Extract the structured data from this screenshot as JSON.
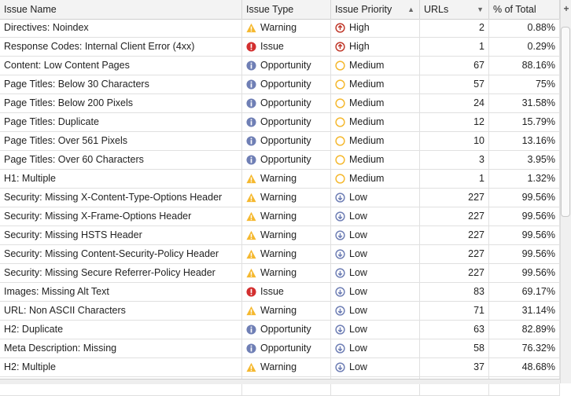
{
  "columns": [
    "Issue Name",
    "Issue Type",
    "Issue Priority",
    "URLs",
    "% of Total"
  ],
  "colors": {
    "warning": "#f5b82e",
    "issue": "#d32f2f",
    "opportunity": "#6f7fb5",
    "high": "#c0392b",
    "medium": "#f5b82e",
    "low": "#6f7fb5"
  },
  "rows": [
    [
      "Directives: Noindex",
      "Warning",
      "High",
      "2",
      "0.88%"
    ],
    [
      "Response Codes: Internal Client Error (4xx)",
      "Issue",
      "High",
      "1",
      "0.29%"
    ],
    [
      "Content: Low Content Pages",
      "Opportunity",
      "Medium",
      "67",
      "88.16%"
    ],
    [
      "Page Titles: Below 30 Characters",
      "Opportunity",
      "Medium",
      "57",
      "75%"
    ],
    [
      "Page Titles: Below 200 Pixels",
      "Opportunity",
      "Medium",
      "24",
      "31.58%"
    ],
    [
      "Page Titles: Duplicate",
      "Opportunity",
      "Medium",
      "12",
      "15.79%"
    ],
    [
      "Page Titles: Over 561 Pixels",
      "Opportunity",
      "Medium",
      "10",
      "13.16%"
    ],
    [
      "Page Titles: Over 60 Characters",
      "Opportunity",
      "Medium",
      "3",
      "3.95%"
    ],
    [
      "H1: Multiple",
      "Warning",
      "Medium",
      "1",
      "1.32%"
    ],
    [
      "Security: Missing X-Content-Type-Options Header",
      "Warning",
      "Low",
      "227",
      "99.56%"
    ],
    [
      "Security: Missing X-Frame-Options Header",
      "Warning",
      "Low",
      "227",
      "99.56%"
    ],
    [
      "Security: Missing HSTS Header",
      "Warning",
      "Low",
      "227",
      "99.56%"
    ],
    [
      "Security: Missing Content-Security-Policy Header",
      "Warning",
      "Low",
      "227",
      "99.56%"
    ],
    [
      "Security: Missing Secure Referrer-Policy Header",
      "Warning",
      "Low",
      "227",
      "99.56%"
    ],
    [
      "Images: Missing Alt Text",
      "Issue",
      "Low",
      "83",
      "69.17%"
    ],
    [
      "URL: Non ASCII Characters",
      "Warning",
      "Low",
      "71",
      "31.14%"
    ],
    [
      "H2: Duplicate",
      "Opportunity",
      "Low",
      "63",
      "82.89%"
    ],
    [
      "Meta Description: Missing",
      "Opportunity",
      "Low",
      "58",
      "76.32%"
    ],
    [
      "H2: Multiple",
      "Warning",
      "Low",
      "37",
      "48.68%"
    ]
  ]
}
